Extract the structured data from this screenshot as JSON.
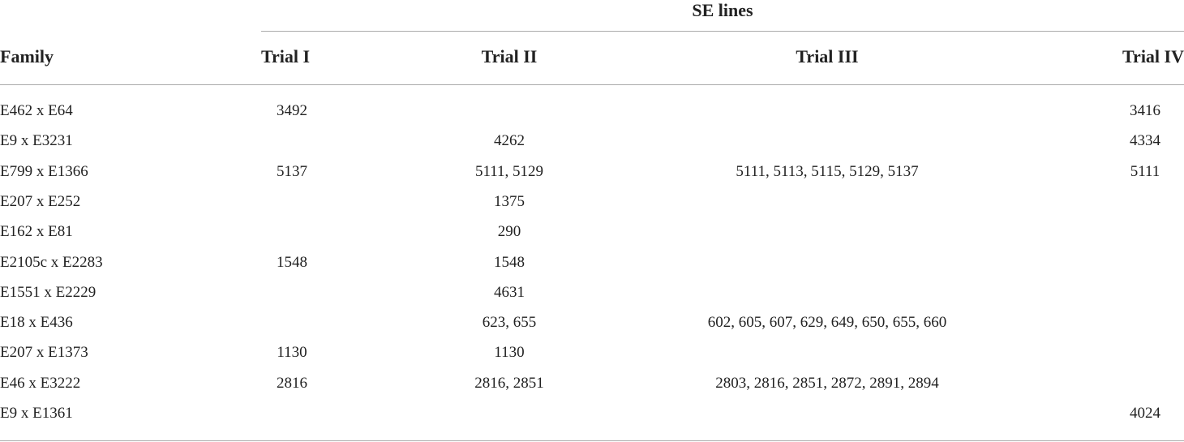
{
  "table": {
    "group_header": "SE lines",
    "columns": [
      "Family",
      "Trial I",
      "Trial II",
      "Trial III",
      "Trial IV"
    ],
    "rows": [
      [
        "E462 x E64",
        "3492",
        null,
        null,
        "3416"
      ],
      [
        "E9 x E3231",
        null,
        "4262",
        null,
        "4334"
      ],
      [
        "E799 x E1366",
        "5137",
        "5111, 5129",
        "5111, 5113, 5115, 5129, 5137",
        "5111"
      ],
      [
        "E207 x E252",
        null,
        "1375",
        null,
        null
      ],
      [
        "E162 x E81",
        null,
        "290",
        null,
        null
      ],
      [
        "E2105c x E2283",
        "1548",
        "1548",
        null,
        null
      ],
      [
        "E1551 x E2229",
        null,
        "4631",
        null,
        null
      ],
      [
        "E18 x E436",
        null,
        "623, 655",
        "602, 605, 607, 629, 649, 650, 655, 660",
        null
      ],
      [
        "E207 x E1373",
        "1130",
        "1130",
        null,
        null
      ],
      [
        "E46 x E3222",
        "2816",
        "2816, 2851",
        "2803, 2816, 2851, 2872, 2891, 2894",
        null
      ],
      [
        "E9 x E1361",
        null,
        null,
        null,
        "4024"
      ]
    ]
  }
}
